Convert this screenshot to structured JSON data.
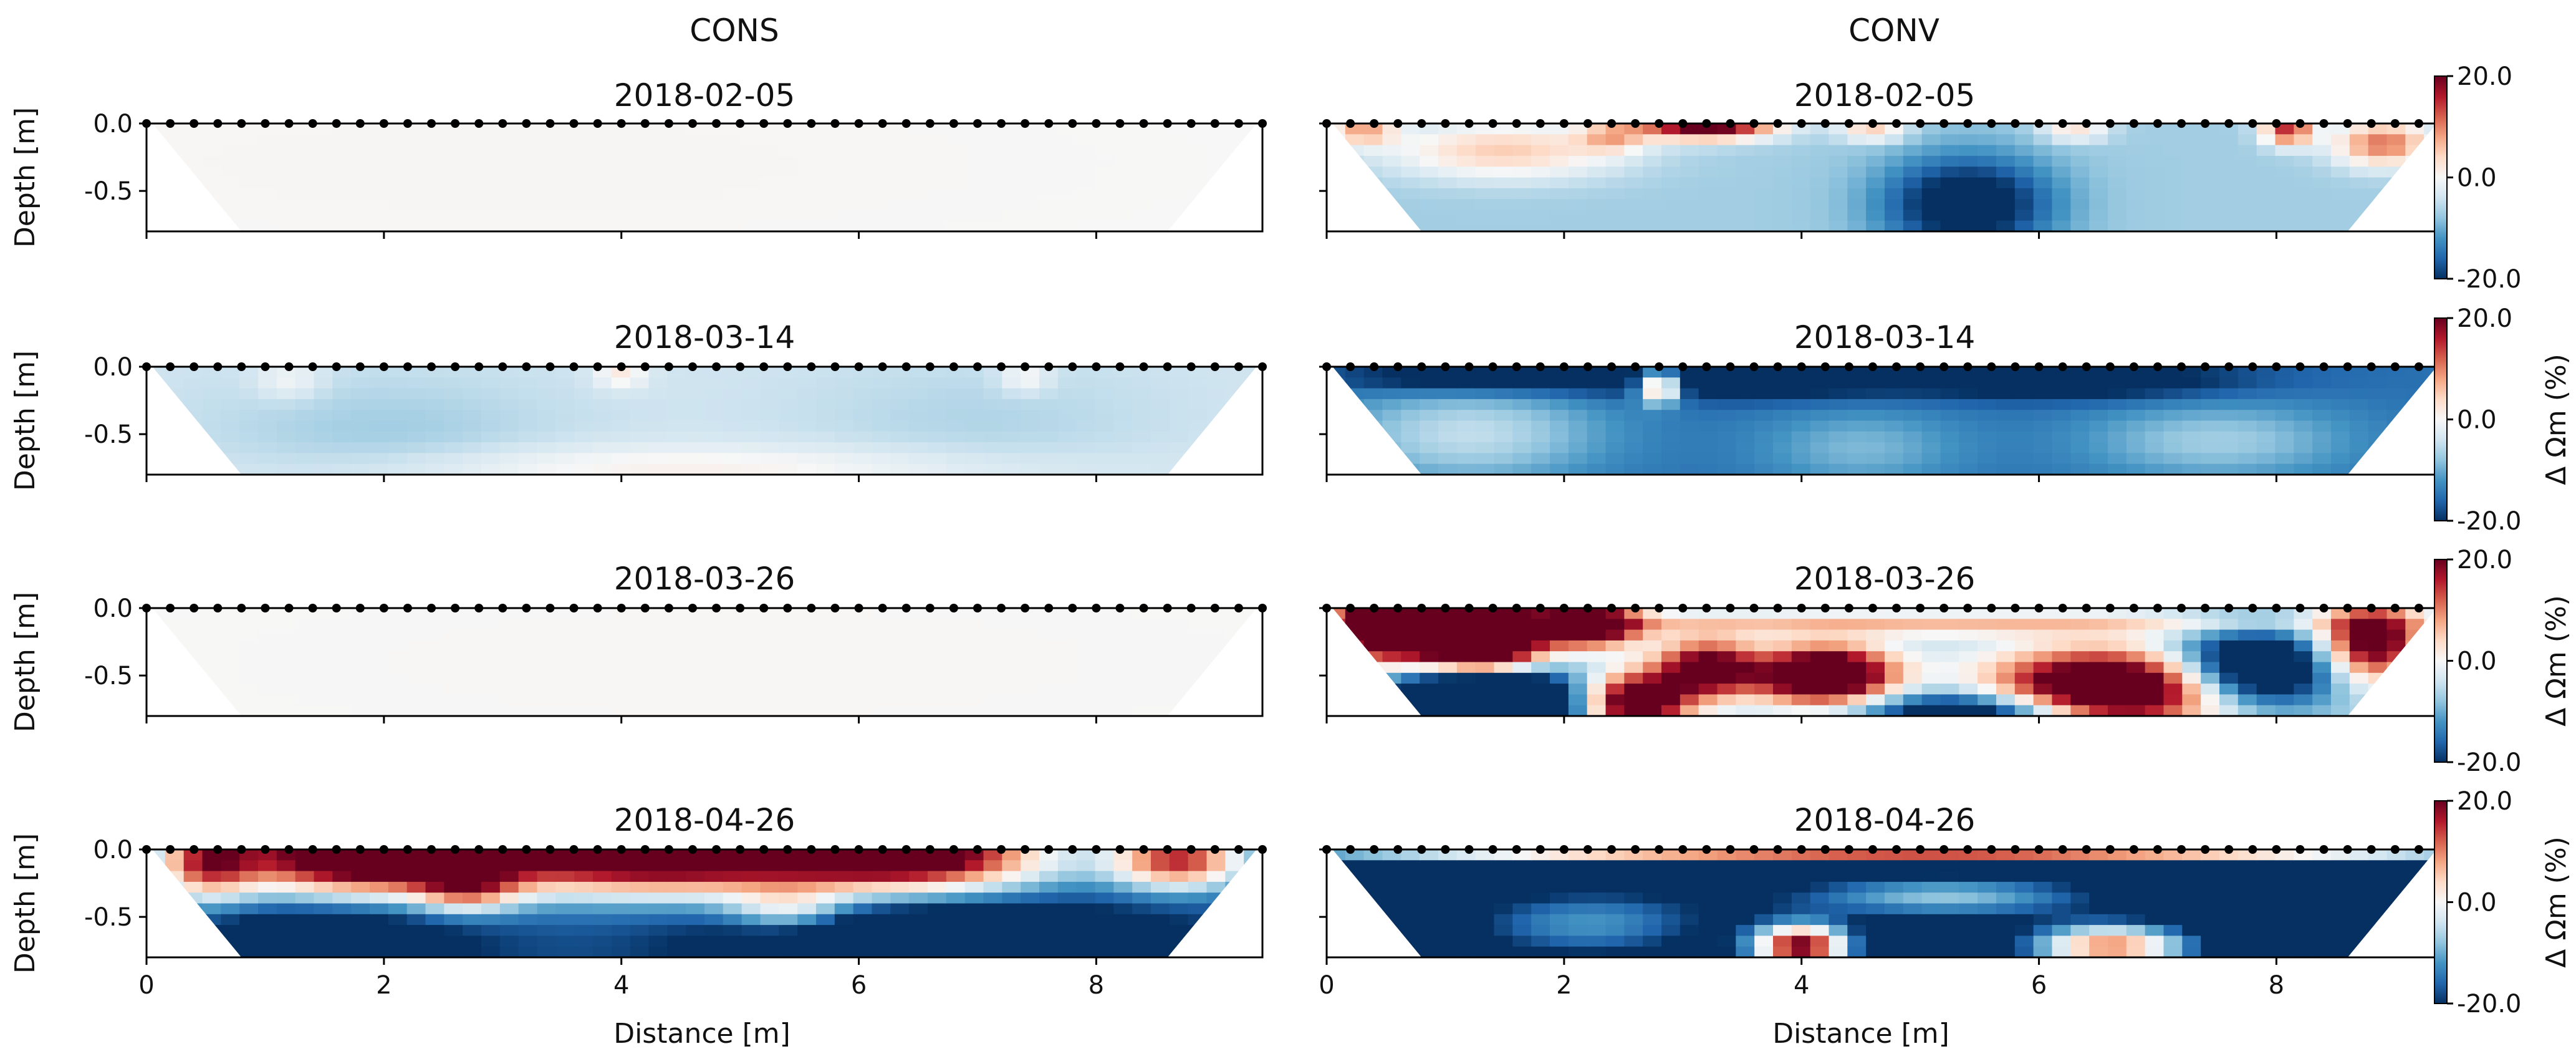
{
  "chart_data": {
    "type": "heatmap",
    "column_titles": [
      "CONS",
      "CONV"
    ],
    "xlabel": "Distance [m]",
    "ylabel": "Depth [m]",
    "xlim": [
      0,
      9.4
    ],
    "ylim": [
      -0.8,
      0.0
    ],
    "x_ticks": [
      "0",
      "2",
      "4",
      "6",
      "8"
    ],
    "y_ticks": [
      "0.0",
      "-0.5"
    ],
    "colorbar": {
      "label": "Δ Ωm (%)",
      "range": [
        -20.0,
        20.0
      ],
      "ticks": [
        "20.0",
        "0.0",
        "-20.0"
      ],
      "cmap": "RdBu_r"
    },
    "electrodes": {
      "start": 0.0,
      "spacing": 0.2,
      "count": 48
    },
    "dates": [
      "2018-02-05",
      "2018-03-14",
      "2018-03-26",
      "2018-04-26"
    ],
    "panels": [
      {
        "method": "CONS",
        "date": "2018-02-05",
        "base": 0,
        "blobs": [
          {
            "x": 3,
            "y": -0.3,
            "sx": 3,
            "sy": 0.4,
            "v": 0.3
          }
        ]
      },
      {
        "method": "CONS",
        "date": "2018-03-14",
        "base": -4,
        "blobs": [
          {
            "x": 4,
            "y": -0.05,
            "sx": 0.15,
            "sy": 0.08,
            "v": 6
          },
          {
            "x": 1.2,
            "y": -0.1,
            "sx": 0.2,
            "sy": 0.1,
            "v": 4
          },
          {
            "x": 7.4,
            "y": -0.08,
            "sx": 0.15,
            "sy": 0.08,
            "v": 5
          },
          {
            "x": 4.5,
            "y": -0.75,
            "sx": 2,
            "sy": 0.12,
            "v": 5
          },
          {
            "x": 2,
            "y": -0.5,
            "sx": 1,
            "sy": 0.3,
            "v": -3
          },
          {
            "x": 7,
            "y": -0.4,
            "sx": 1,
            "sy": 0.3,
            "v": -2
          }
        ]
      },
      {
        "method": "CONS",
        "date": "2018-03-26",
        "base": 0,
        "blobs": [
          {
            "x": 5,
            "y": -0.4,
            "sx": 3,
            "sy": 0.4,
            "v": 0.2
          }
        ]
      },
      {
        "method": "CONS",
        "date": "2018-04-26",
        "base": -17,
        "blobs": [
          {
            "x": 1.8,
            "y": -0.05,
            "sx": 0.8,
            "sy": 0.2,
            "v": 45
          },
          {
            "x": 4.3,
            "y": -0.05,
            "sx": 1.2,
            "sy": 0.2,
            "v": 45
          },
          {
            "x": 6.5,
            "y": -0.05,
            "sx": 0.8,
            "sy": 0.18,
            "v": 38
          },
          {
            "x": 8.7,
            "y": -0.08,
            "sx": 0.4,
            "sy": 0.15,
            "v": 32
          },
          {
            "x": 0.5,
            "y": -0.1,
            "sx": 0.3,
            "sy": 0.2,
            "v": 25
          },
          {
            "x": 2.7,
            "y": -0.3,
            "sx": 0.3,
            "sy": 0.12,
            "v": 18
          },
          {
            "x": 6.7,
            "y": -0.72,
            "sx": 1.2,
            "sy": 0.2,
            "v": -20
          },
          {
            "x": 1.5,
            "y": -0.7,
            "sx": 0.8,
            "sy": 0.2,
            "v": -12
          },
          {
            "x": 5.4,
            "y": -0.45,
            "sx": 0.35,
            "sy": 0.12,
            "v": 14
          }
        ]
      },
      {
        "method": "CONV",
        "date": "2018-02-05",
        "base": -7,
        "blobs": [
          {
            "x": 3.2,
            "y": -0.02,
            "sx": 0.4,
            "sy": 0.07,
            "v": 30
          },
          {
            "x": 1.5,
            "y": -0.2,
            "sx": 0.7,
            "sy": 0.15,
            "v": 12
          },
          {
            "x": 8.9,
            "y": -0.15,
            "sx": 0.3,
            "sy": 0.12,
            "v": 18
          },
          {
            "x": 8.1,
            "y": -0.05,
            "sx": 0.15,
            "sy": 0.08,
            "v": 22
          },
          {
            "x": 0.3,
            "y": -0.05,
            "sx": 0.2,
            "sy": 0.08,
            "v": 14
          },
          {
            "x": 5.4,
            "y": -0.6,
            "sx": 0.5,
            "sy": 0.25,
            "v": -18
          },
          {
            "x": 2.4,
            "y": -0.1,
            "sx": 0.2,
            "sy": 0.08,
            "v": 10
          },
          {
            "x": 4.6,
            "y": -0.05,
            "sx": 0.2,
            "sy": 0.06,
            "v": 12
          },
          {
            "x": 6.3,
            "y": -0.05,
            "sx": 0.2,
            "sy": 0.06,
            "v": 10
          }
        ]
      },
      {
        "method": "CONV",
        "date": "2018-03-14",
        "base": -15,
        "blobs": [
          {
            "x": 2.8,
            "y": -0.15,
            "sx": 0.12,
            "sy": 0.08,
            "v": 28
          },
          {
            "x": 1.2,
            "y": -0.5,
            "sx": 0.8,
            "sy": 0.25,
            "v": 10
          },
          {
            "x": 7.5,
            "y": -0.55,
            "sx": 0.8,
            "sy": 0.2,
            "v": 8
          },
          {
            "x": 4.5,
            "y": -0.6,
            "sx": 0.6,
            "sy": 0.2,
            "v": 6
          },
          {
            "x": 1.2,
            "y": -0.08,
            "sx": 0.8,
            "sy": 0.08,
            "v": -10
          },
          {
            "x": 3.5,
            "y": -0.1,
            "sx": 1,
            "sy": 0.1,
            "v": -10
          },
          {
            "x": 6.3,
            "y": -0.1,
            "sx": 1,
            "sy": 0.1,
            "v": -10
          }
        ]
      },
      {
        "method": "CONV",
        "date": "2018-03-26",
        "base": -6,
        "blobs": [
          {
            "x": 0.5,
            "y": -0.15,
            "sx": 0.35,
            "sy": 0.18,
            "v": 40
          },
          {
            "x": 1.3,
            "y": -0.25,
            "sx": 0.35,
            "sy": 0.2,
            "v": 55
          },
          {
            "x": 2.2,
            "y": -0.12,
            "sx": 0.3,
            "sy": 0.12,
            "v": 35
          },
          {
            "x": 2.6,
            "y": -0.7,
            "sx": 0.3,
            "sy": 0.15,
            "v": 35
          },
          {
            "x": 3.2,
            "y": -0.45,
            "sx": 0.3,
            "sy": 0.15,
            "v": 30
          },
          {
            "x": 4.2,
            "y": -0.5,
            "sx": 0.4,
            "sy": 0.15,
            "v": 42
          },
          {
            "x": 6.6,
            "y": -0.6,
            "sx": 0.7,
            "sy": 0.2,
            "v": 42
          },
          {
            "x": 8.8,
            "y": -0.25,
            "sx": 0.3,
            "sy": 0.2,
            "v": 32
          },
          {
            "x": 1.3,
            "y": -0.72,
            "sx": 0.5,
            "sy": 0.2,
            "v": -60
          },
          {
            "x": 5.5,
            "y": -0.78,
            "sx": 0.7,
            "sy": 0.12,
            "v": -25
          },
          {
            "x": 7.8,
            "y": -0.45,
            "sx": 0.5,
            "sy": 0.2,
            "v": -30
          },
          {
            "x": 5,
            "y": -0.12,
            "sx": 2.5,
            "sy": 0.06,
            "v": 12
          }
        ]
      },
      {
        "method": "CONV",
        "date": "2018-04-26",
        "base": -30,
        "blobs": [
          {
            "x": 4,
            "y": -0.72,
            "sx": 0.3,
            "sy": 0.12,
            "v": 50
          },
          {
            "x": 6.6,
            "y": -0.72,
            "sx": 0.5,
            "sy": 0.12,
            "v": 40
          },
          {
            "x": 5,
            "y": -0.04,
            "sx": 4,
            "sy": 0.04,
            "v": 42
          },
          {
            "x": 2.2,
            "y": -0.55,
            "sx": 0.8,
            "sy": 0.2,
            "v": 18
          },
          {
            "x": 5.2,
            "y": -0.35,
            "sx": 1,
            "sy": 0.12,
            "v": 22
          }
        ]
      }
    ]
  }
}
